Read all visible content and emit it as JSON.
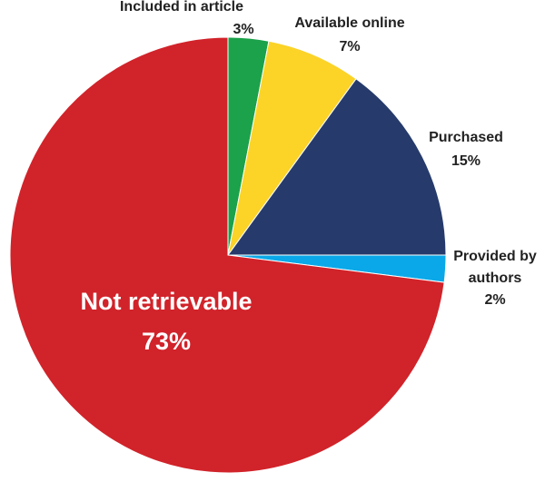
{
  "chart_data": {
    "type": "pie",
    "categories": [
      "Included in article",
      "Available online",
      "Purchased",
      "Provided by authors",
      "Not retrievable"
    ],
    "values": [
      3,
      7,
      15,
      2,
      73
    ],
    "value_labels": [
      "3%",
      "7%",
      "15%",
      "2%",
      "73%"
    ],
    "colors": [
      "#1ba24a",
      "#fcd327",
      "#263b6b",
      "#0aa8e8",
      "#d1232a"
    ]
  }
}
